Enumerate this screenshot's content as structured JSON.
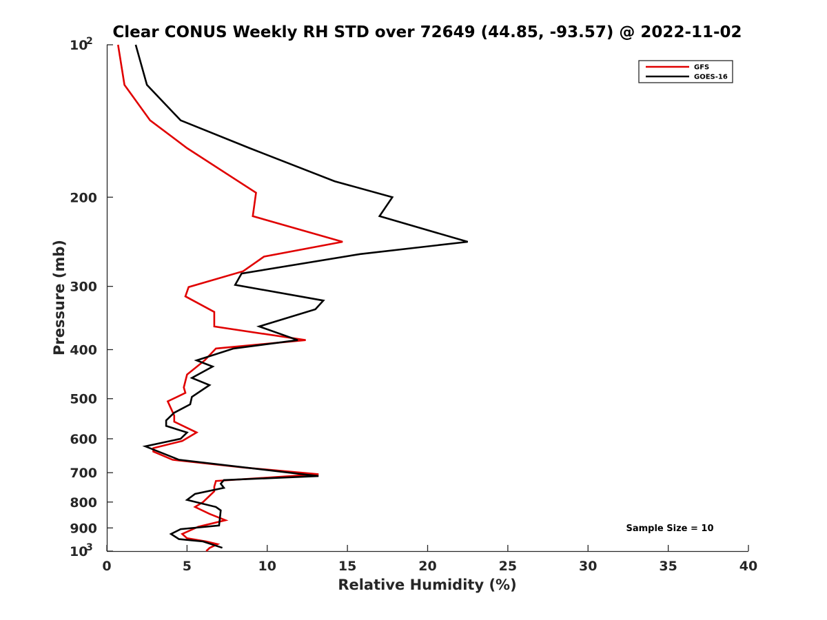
{
  "chart_data": {
    "type": "line",
    "title": "Clear CONUS Weekly RH STD over 72649 (44.85, -93.57) @ 2022-11-02",
    "xlabel": "Relative Humidity (%)",
    "ylabel": "Pressure (mb)",
    "xlim": [
      0,
      40
    ],
    "ylim": [
      100,
      1000
    ],
    "y_scale": "log",
    "y_reversed": true,
    "x_ticks": [
      0,
      5,
      10,
      15,
      20,
      25,
      30,
      35,
      40
    ],
    "y_ticks": [
      100,
      200,
      300,
      400,
      500,
      600,
      700,
      800,
      900,
      1000
    ],
    "y_tick_labels": [
      {
        "base": "10",
        "exp": "2"
      },
      {
        "text": "200"
      },
      {
        "text": "300"
      },
      {
        "text": "400"
      },
      {
        "text": "500"
      },
      {
        "text": "600"
      },
      {
        "text": "700"
      },
      {
        "text": "800"
      },
      {
        "text": "900"
      },
      {
        "base": "10",
        "exp": "3"
      }
    ],
    "grid": false,
    "legend_position": "top-right",
    "annotation": "Sample Size = 10",
    "series": [
      {
        "name": "GFS",
        "color": "#e00000",
        "points": [
          [
            0.7,
            100
          ],
          [
            1.1,
            120
          ],
          [
            2.7,
            141
          ],
          [
            5.0,
            160
          ],
          [
            9.3,
            196
          ],
          [
            9.1,
            218
          ],
          [
            14.7,
            245
          ],
          [
            9.8,
            262
          ],
          [
            8.5,
            280
          ],
          [
            5.1,
            301
          ],
          [
            4.9,
            314
          ],
          [
            6.7,
            337
          ],
          [
            6.7,
            360
          ],
          [
            12.4,
            383
          ],
          [
            6.8,
            398
          ],
          [
            6.1,
            420
          ],
          [
            5.0,
            448
          ],
          [
            4.8,
            475
          ],
          [
            4.9,
            487
          ],
          [
            3.8,
            506
          ],
          [
            4.2,
            540
          ],
          [
            4.2,
            555
          ],
          [
            5.6,
            583
          ],
          [
            4.7,
            606
          ],
          [
            2.9,
            626
          ],
          [
            2.9,
            636
          ],
          [
            4.1,
            660
          ],
          [
            8.6,
            684
          ],
          [
            13.2,
            705
          ],
          [
            6.8,
            727
          ],
          [
            6.7,
            746
          ],
          [
            6.7,
            762
          ],
          [
            6.0,
            800
          ],
          [
            5.5,
            818
          ],
          [
            6.4,
            844
          ],
          [
            7.4,
            869
          ],
          [
            5.7,
            895
          ],
          [
            4.7,
            925
          ],
          [
            5.0,
            943
          ],
          [
            6.2,
            957
          ],
          [
            6.9,
            969
          ],
          [
            6.4,
            986
          ],
          [
            6.2,
            1000
          ]
        ]
      },
      {
        "name": "GOES-16",
        "color": "#000000",
        "points": [
          [
            1.8,
            100
          ],
          [
            2.5,
            120
          ],
          [
            4.6,
            141
          ],
          [
            8.9,
            160
          ],
          [
            14.2,
            186
          ],
          [
            17.8,
            200
          ],
          [
            17.0,
            218
          ],
          [
            22.5,
            245
          ],
          [
            15.8,
            259
          ],
          [
            8.4,
            283
          ],
          [
            8.0,
            298
          ],
          [
            13.5,
            320
          ],
          [
            13.0,
            333
          ],
          [
            9.5,
            360
          ],
          [
            11.9,
            383
          ],
          [
            7.9,
            398
          ],
          [
            5.6,
            420
          ],
          [
            6.6,
            432
          ],
          [
            5.3,
            455
          ],
          [
            6.4,
            470
          ],
          [
            5.3,
            496
          ],
          [
            5.2,
            513
          ],
          [
            4.2,
            533
          ],
          [
            3.7,
            552
          ],
          [
            3.7,
            566
          ],
          [
            5.0,
            583
          ],
          [
            4.6,
            600
          ],
          [
            2.4,
            621
          ],
          [
            4.5,
            660
          ],
          [
            13.2,
            711
          ],
          [
            7.3,
            724
          ],
          [
            7.1,
            736
          ],
          [
            7.3,
            750
          ],
          [
            5.5,
            771
          ],
          [
            5.0,
            792
          ],
          [
            6.8,
            818
          ],
          [
            7.1,
            831
          ],
          [
            7.0,
            890
          ],
          [
            4.6,
            905
          ],
          [
            4.0,
            925
          ],
          [
            4.5,
            947
          ],
          [
            6.0,
            957
          ],
          [
            7.2,
            985
          ]
        ]
      }
    ]
  }
}
